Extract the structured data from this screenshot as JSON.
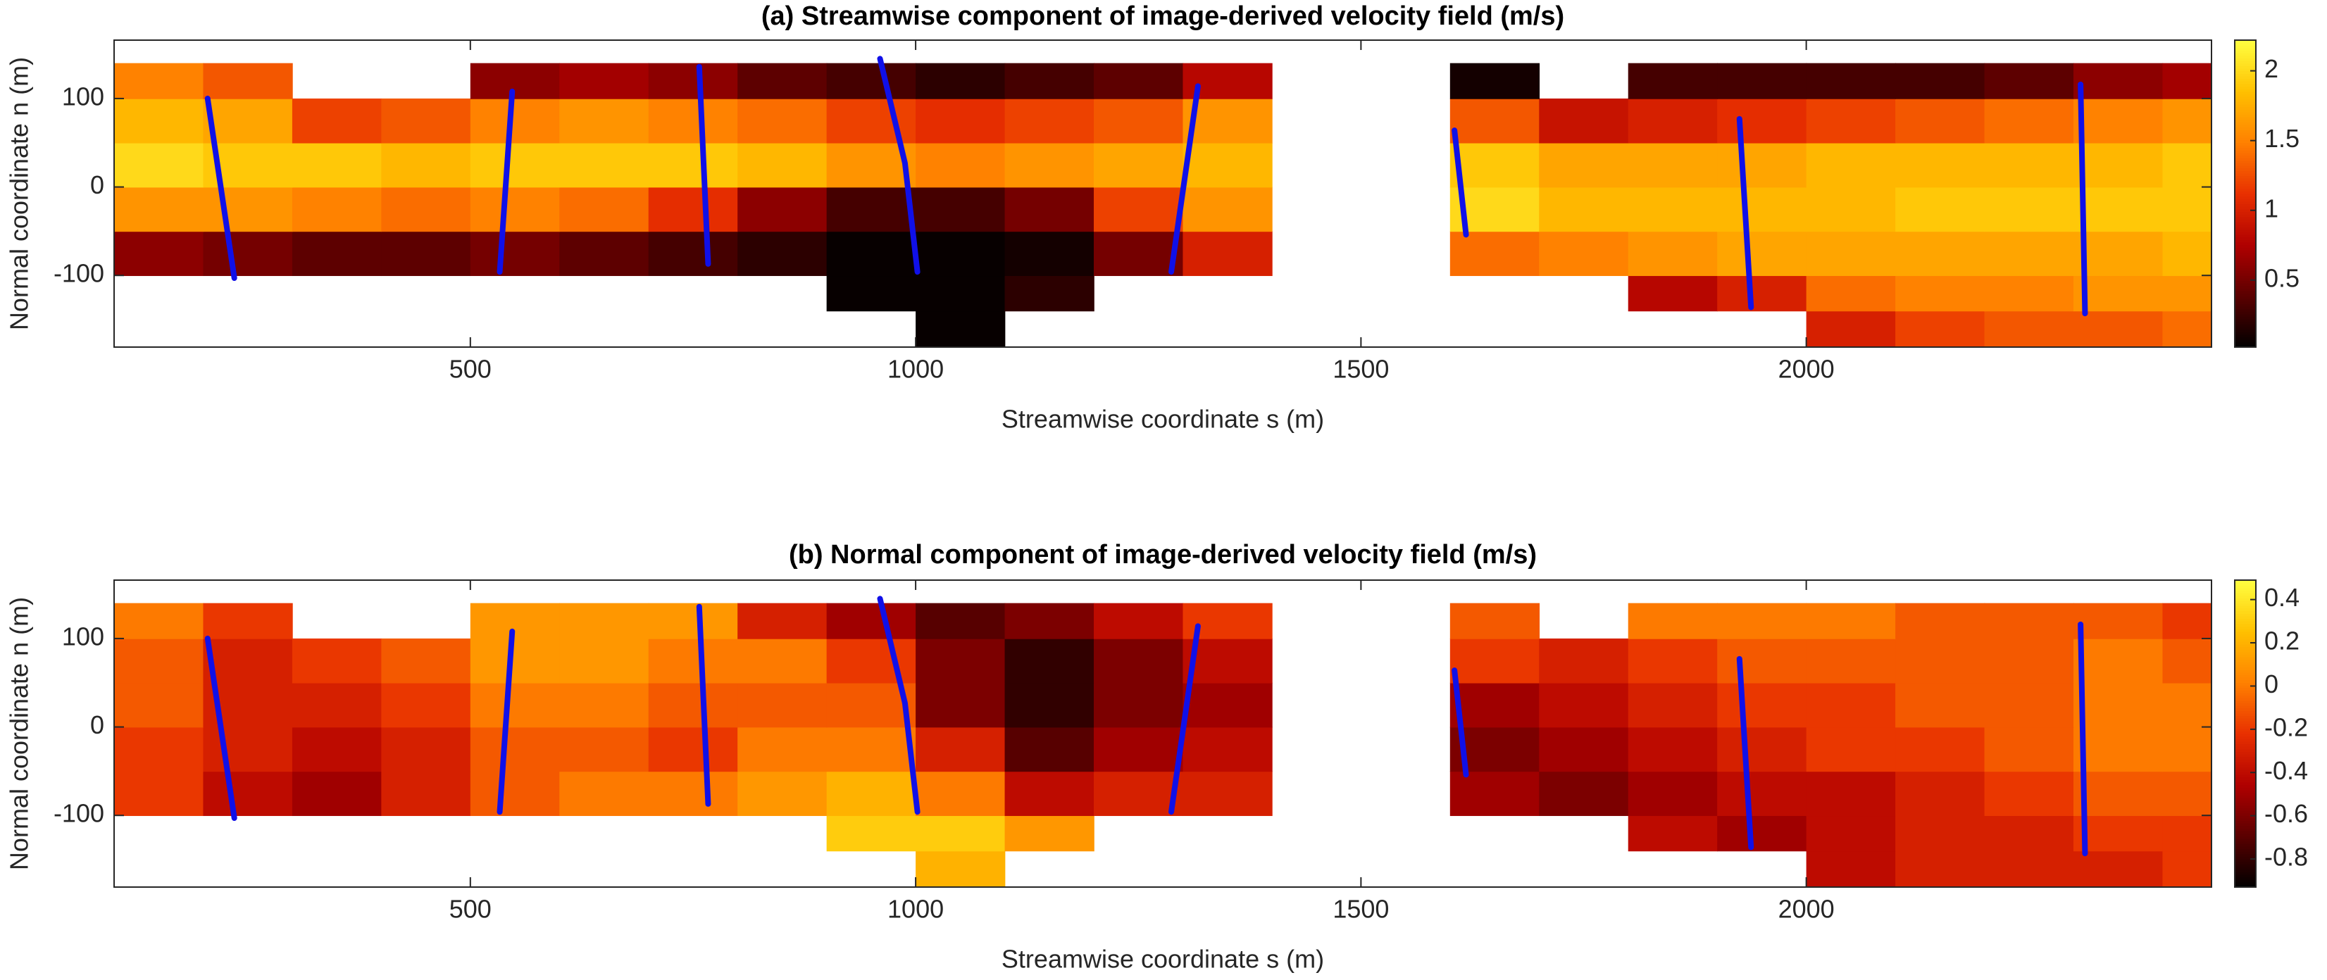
{
  "chart_data": [
    {
      "type": "heatmap",
      "title": "(a) Streamwise component of image-derived velocity field (m/s)",
      "x_label": "Streamwise coordinate s (m)",
      "y_label": "Normal coordinate n (m)",
      "xlim": [
        100,
        2455
      ],
      "ylim": [
        -181,
        166
      ],
      "xticks": [
        500,
        1000,
        1500,
        2000
      ],
      "yticks": [
        -100,
        0,
        100
      ],
      "clim": [
        0.02,
        2.22
      ],
      "cticks": [
        0.5,
        1,
        1.5,
        2
      ],
      "colormap": [
        "#000000",
        "#5a0000",
        "#b00000",
        "#e83000",
        "#ff8000",
        "#ffc000",
        "#ffff40"
      ],
      "xbins": [
        100,
        200,
        300,
        400,
        500,
        600,
        700,
        800,
        900,
        1000,
        1100,
        1200,
        1300,
        1400,
        1500,
        1600,
        1700,
        1800,
        1900,
        2000,
        2100,
        2200,
        2300,
        2400,
        2455
      ],
      "ybins": [
        -180,
        -140,
        -100,
        -50,
        0,
        50,
        100,
        140
      ],
      "z": [
        [
          null,
          null,
          null,
          null,
          null,
          null,
          null,
          null,
          null,
          0.05,
          null,
          null,
          null,
          null,
          null,
          null,
          null,
          null,
          null,
          1.0,
          1.2,
          1.3,
          1.3,
          1.4
        ],
        [
          null,
          null,
          null,
          null,
          null,
          null,
          null,
          null,
          0.05,
          0.05,
          0.2,
          null,
          null,
          null,
          null,
          null,
          null,
          0.8,
          1.0,
          1.4,
          1.5,
          1.5,
          1.6,
          1.6
        ],
        [
          0.6,
          0.5,
          0.4,
          0.4,
          0.5,
          0.4,
          0.3,
          0.2,
          0.05,
          0.05,
          0.1,
          0.5,
          1.0,
          null,
          null,
          1.4,
          1.5,
          1.6,
          1.7,
          1.7,
          1.7,
          1.7,
          1.7,
          1.8
        ],
        [
          1.6,
          1.6,
          1.5,
          1.4,
          1.5,
          1.4,
          1.1,
          0.6,
          0.3,
          0.3,
          0.5,
          1.2,
          1.6,
          null,
          null,
          2.0,
          1.8,
          1.8,
          1.8,
          1.8,
          1.9,
          1.9,
          1.9,
          1.9
        ],
        [
          2.0,
          1.9,
          1.9,
          1.8,
          1.9,
          1.9,
          1.9,
          1.8,
          1.6,
          1.5,
          1.6,
          1.7,
          1.8,
          null,
          null,
          1.9,
          1.7,
          1.7,
          1.7,
          1.8,
          1.8,
          1.8,
          1.8,
          1.9
        ],
        [
          1.8,
          1.7,
          1.2,
          1.3,
          1.5,
          1.6,
          1.5,
          1.4,
          1.2,
          1.1,
          1.2,
          1.3,
          1.6,
          null,
          null,
          1.3,
          0.9,
          1.0,
          1.1,
          1.2,
          1.3,
          1.4,
          1.5,
          1.6
        ],
        [
          1.5,
          1.3,
          null,
          null,
          0.6,
          0.7,
          0.6,
          0.4,
          0.3,
          0.2,
          0.3,
          0.4,
          0.8,
          null,
          null,
          0.1,
          null,
          0.3,
          0.3,
          0.3,
          0.3,
          0.4,
          0.6,
          0.7
        ]
      ],
      "transect_color": "#1010e8",
      "transects": [
        {
          "x": [
            205,
            235
          ],
          "y": [
            100,
            -103
          ]
        },
        {
          "x": [
            547,
            533
          ],
          "y": [
            108,
            -96
          ]
        },
        {
          "x": [
            757,
            767
          ],
          "y": [
            136,
            -87
          ]
        },
        {
          "x": [
            960,
            988,
            1002
          ],
          "y": [
            145,
            27,
            -96
          ]
        },
        {
          "x": [
            1317,
            1287
          ],
          "y": [
            114,
            -96
          ]
        },
        {
          "x": [
            1605,
            1618
          ],
          "y": [
            64,
            -54
          ]
        },
        {
          "x": [
            1925,
            1938
          ],
          "y": [
            77,
            -136
          ]
        },
        {
          "x": [
            2308,
            2313
          ],
          "y": [
            116,
            -143
          ]
        }
      ]
    },
    {
      "type": "heatmap",
      "title": "(b) Normal component of image-derived velocity field (m/s)",
      "x_label": "Streamwise coordinate s (m)",
      "y_label": "Normal coordinate n (m)",
      "xlim": [
        100,
        2455
      ],
      "ylim": [
        -181,
        166
      ],
      "xticks": [
        500,
        1000,
        1500,
        2000
      ],
      "yticks": [
        -100,
        0,
        100
      ],
      "clim": [
        -0.93,
        0.49
      ],
      "cticks": [
        -0.8,
        -0.6,
        -0.4,
        -0.2,
        0,
        0.2,
        0.4
      ],
      "colormap": [
        "#000000",
        "#5a0000",
        "#b00000",
        "#e83000",
        "#ff8000",
        "#ffc000",
        "#ffff40"
      ],
      "xbins": [
        100,
        200,
        300,
        400,
        500,
        600,
        700,
        800,
        900,
        1000,
        1100,
        1200,
        1300,
        1400,
        1500,
        1600,
        1700,
        1800,
        1900,
        2000,
        2100,
        2200,
        2300,
        2400,
        2455
      ],
      "ybins": [
        -180,
        -140,
        -100,
        -50,
        0,
        50,
        100,
        140
      ],
      "z": [
        [
          null,
          null,
          null,
          null,
          null,
          null,
          null,
          null,
          null,
          0.2,
          null,
          null,
          null,
          null,
          null,
          null,
          null,
          null,
          null,
          -0.4,
          -0.3,
          -0.3,
          -0.3,
          -0.2
        ],
        [
          null,
          null,
          null,
          null,
          null,
          null,
          null,
          null,
          0.3,
          0.3,
          0.1,
          null,
          null,
          null,
          null,
          null,
          null,
          -0.4,
          -0.5,
          -0.4,
          -0.3,
          -0.3,
          -0.2,
          -0.2
        ],
        [
          -0.2,
          -0.4,
          -0.5,
          -0.3,
          -0.1,
          0.0,
          0.0,
          0.1,
          0.2,
          0.0,
          -0.4,
          -0.3,
          -0.3,
          null,
          null,
          -0.5,
          -0.6,
          -0.5,
          -0.4,
          -0.4,
          -0.3,
          -0.2,
          -0.1,
          -0.1
        ],
        [
          -0.2,
          -0.3,
          -0.4,
          -0.3,
          -0.1,
          -0.1,
          -0.2,
          0.0,
          0.0,
          -0.3,
          -0.7,
          -0.5,
          -0.4,
          null,
          null,
          -0.6,
          -0.5,
          -0.4,
          -0.3,
          -0.2,
          -0.2,
          -0.1,
          0.0,
          0.0
        ],
        [
          -0.1,
          -0.3,
          -0.3,
          -0.2,
          0.0,
          0.0,
          -0.1,
          -0.1,
          -0.1,
          -0.6,
          -0.8,
          -0.6,
          -0.5,
          null,
          null,
          -0.5,
          -0.4,
          -0.3,
          -0.2,
          -0.2,
          -0.1,
          -0.1,
          0.0,
          0.0
        ],
        [
          -0.1,
          -0.3,
          -0.2,
          -0.1,
          0.1,
          0.1,
          0.0,
          0.0,
          -0.2,
          -0.6,
          -0.8,
          -0.6,
          -0.4,
          null,
          null,
          -0.2,
          -0.3,
          -0.2,
          -0.1,
          -0.1,
          -0.1,
          -0.1,
          0.0,
          -0.1
        ],
        [
          0.0,
          -0.2,
          null,
          null,
          0.1,
          0.1,
          0.1,
          -0.3,
          -0.5,
          -0.7,
          -0.6,
          -0.4,
          -0.2,
          null,
          null,
          -0.1,
          null,
          0.0,
          0.0,
          0.0,
          -0.1,
          -0.1,
          -0.1,
          -0.2
        ]
      ],
      "transect_color": "#1010e8",
      "transects": [
        {
          "x": [
            205,
            235
          ],
          "y": [
            100,
            -103
          ]
        },
        {
          "x": [
            547,
            533
          ],
          "y": [
            108,
            -96
          ]
        },
        {
          "x": [
            757,
            767
          ],
          "y": [
            136,
            -87
          ]
        },
        {
          "x": [
            960,
            988,
            1002
          ],
          "y": [
            145,
            27,
            -96
          ]
        },
        {
          "x": [
            1317,
            1287
          ],
          "y": [
            114,
            -96
          ]
        },
        {
          "x": [
            1605,
            1618
          ],
          "y": [
            64,
            -54
          ]
        },
        {
          "x": [
            1925,
            1938
          ],
          "y": [
            77,
            -136
          ]
        },
        {
          "x": [
            2308,
            2313
          ],
          "y": [
            116,
            -143
          ]
        }
      ]
    }
  ]
}
